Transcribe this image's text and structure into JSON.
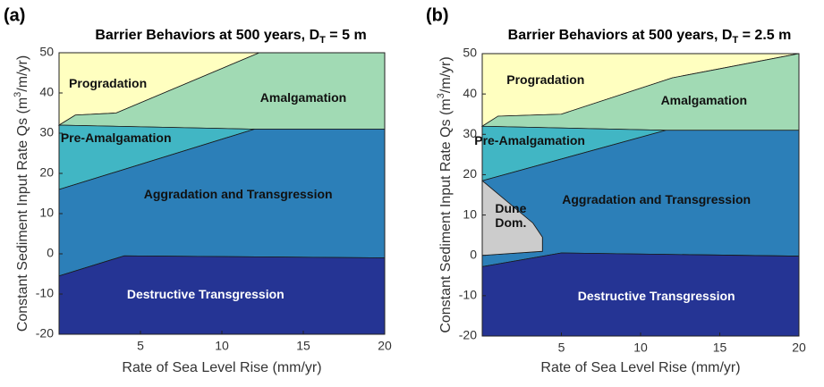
{
  "chart_data": [
    {
      "type": "region",
      "panel": "(a)",
      "title": "Barrier Behaviors at 500 years, D",
      "title_sub": "T",
      "title_end": " = 5 m",
      "xlabel": "Rate of Sea Level Rise (mm/yr)",
      "ylabel": "Constant Sediment Input Rate Qs (m",
      "ylabel_sup": "3",
      "ylabel_end": "/m/yr)",
      "xlim": [
        0,
        20
      ],
      "ylim": [
        -20,
        50
      ],
      "xticks": [
        5,
        10,
        15,
        20
      ],
      "yticks": [
        -20,
        -10,
        0,
        10,
        20,
        30,
        40,
        50
      ],
      "regions": [
        {
          "name": "Progradation",
          "color": "#ffffc0",
          "x": [
            0,
            1,
            3.5,
            12.3,
            0
          ],
          "y": [
            32,
            34.5,
            35,
            50,
            50
          ]
        },
        {
          "name": "Amalgamation",
          "color": "#a1dab4",
          "x": [
            0,
            1,
            3.5,
            12.3,
            20,
            20,
            12
          ],
          "y": [
            32,
            34.5,
            35,
            50,
            50,
            31,
            31
          ]
        },
        {
          "name": "Pre-Amalgamation",
          "color": "#41b6c4",
          "x": [
            0,
            12,
            0
          ],
          "y": [
            32,
            31,
            16
          ]
        },
        {
          "name": "Aggradation and Transgression",
          "color": "#2c7fb8",
          "x": [
            0,
            12,
            20,
            20,
            4,
            0
          ],
          "y": [
            16,
            31,
            31,
            -1,
            -0.5,
            -5.5
          ]
        },
        {
          "name": "Destructive Transgression",
          "color": "#253494",
          "x": [
            0,
            4,
            20,
            20,
            0
          ],
          "y": [
            -5.5,
            -0.5,
            -1,
            -20,
            -20
          ]
        }
      ]
    },
    {
      "type": "region",
      "panel": "(b)",
      "title": "Barrier Behaviors at 500 years, D",
      "title_sub": "T",
      "title_end": " = 2.5 m",
      "xlabel": "Rate of Sea Level Rise (mm/yr)",
      "ylabel": "Constant Sediment Input Rate Qs (m",
      "ylabel_sup": "3",
      "ylabel_end": "/m/yr)",
      "xlim": [
        0,
        20
      ],
      "ylim": [
        -20,
        50
      ],
      "xticks": [
        5,
        10,
        15,
        20
      ],
      "yticks": [
        -20,
        -10,
        0,
        10,
        20,
        30,
        40,
        50
      ],
      "regions": [
        {
          "name": "Progradation",
          "color": "#ffffc0",
          "x": [
            0,
            1,
            5,
            12,
            20,
            0
          ],
          "y": [
            32,
            34.5,
            35,
            44,
            50,
            50
          ]
        },
        {
          "name": "Amalgamation",
          "color": "#a1dab4",
          "x": [
            0,
            1,
            5,
            12,
            20,
            20,
            11.6
          ],
          "y": [
            32,
            34.5,
            35,
            44,
            50,
            31,
            31
          ]
        },
        {
          "name": "Pre-Amalgamation",
          "color": "#41b6c4",
          "x": [
            0,
            11.6,
            0
          ],
          "y": [
            32,
            31,
            18.5
          ]
        },
        {
          "name": "Aggradation and Transgression",
          "color": "#2c7fb8",
          "x": [
            0,
            11.6,
            20,
            20,
            5,
            0,
            0,
            3.8,
            3.8,
            3.2
          ],
          "y": [
            18.5,
            31,
            31,
            -0.2,
            0.6,
            -2.8,
            0,
            1,
            4.5,
            8
          ]
        },
        {
          "name": "Dune Dom.",
          "color": "#cccccc",
          "x": [
            0,
            3.2,
            3.8,
            3.8,
            0
          ],
          "y": [
            18.5,
            8,
            4.5,
            1,
            0
          ]
        },
        {
          "name": "Destructive Transgression",
          "color": "#253494",
          "x": [
            0,
            5,
            20,
            20,
            0
          ],
          "y": [
            -2.8,
            0.6,
            -0.2,
            -20,
            -20
          ]
        }
      ]
    }
  ]
}
